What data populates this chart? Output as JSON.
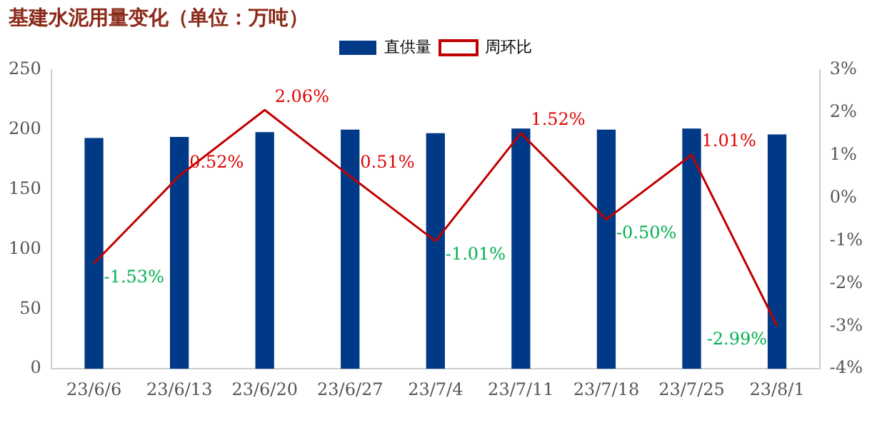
{
  "chart_data": {
    "type": "bar",
    "title": "基建水泥用量变化（单位：万吨）",
    "categories": [
      "23/6/6",
      "23/6/13",
      "23/6/20",
      "23/6/27",
      "23/7/4",
      "23/7/11",
      "23/7/18",
      "23/7/25",
      "23/8/1"
    ],
    "series": [
      {
        "name": "直供量",
        "type": "bar",
        "color": "#003a87",
        "values": [
          193,
          194,
          198,
          200,
          197,
          201,
          200,
          201,
          196
        ]
      },
      {
        "name": "周环比",
        "type": "line",
        "axis": "y2",
        "color": "#c00000",
        "values": [
          -1.53,
          0.52,
          2.06,
          0.51,
          -1.01,
          1.52,
          -0.5,
          1.01,
          -2.99
        ],
        "value_labels": [
          "-1.53%",
          "0.52%",
          "2.06%",
          "0.51%",
          "-1.01%",
          "1.52%",
          "-0.50%",
          "1.01%",
          "-2.99%"
        ]
      }
    ],
    "ylim": [
      0,
      250
    ],
    "yticks": [
      0,
      50,
      100,
      150,
      200,
      250
    ],
    "y2lim": [
      -4,
      3
    ],
    "y2ticks": [
      {
        "value": -4,
        "label": "-4%"
      },
      {
        "value": -3,
        "label": "-3%"
      },
      {
        "value": -2,
        "label": "-2%"
      },
      {
        "value": -1,
        "label": "-1%"
      },
      {
        "value": 0,
        "label": "0%"
      },
      {
        "value": 1,
        "label": "1%"
      },
      {
        "value": 2,
        "label": "2%"
      },
      {
        "value": 3,
        "label": "3%"
      }
    ],
    "grid": false,
    "legend": "top",
    "marker": "none"
  }
}
